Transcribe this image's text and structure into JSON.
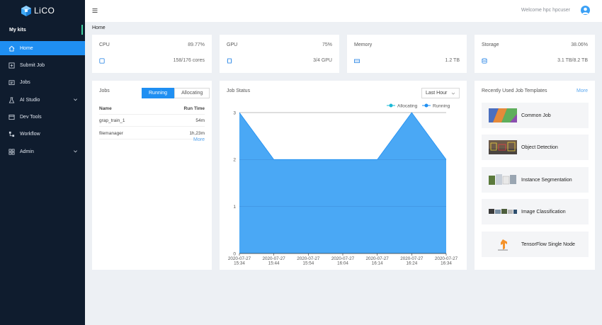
{
  "app": {
    "logo_text": "LiCO"
  },
  "sidebar": {
    "section_label": "My kits",
    "items": [
      {
        "label": "Home",
        "icon": "home-icon",
        "active": true
      },
      {
        "label": "Submit Job",
        "icon": "submit-job-icon"
      },
      {
        "label": "Jobs",
        "icon": "jobs-icon"
      },
      {
        "label": "AI Studio",
        "icon": "ai-studio-icon",
        "expandable": true
      },
      {
        "label": "Dev Tools",
        "icon": "dev-tools-icon"
      },
      {
        "label": "Workflow",
        "icon": "workflow-icon"
      },
      {
        "label": "Admin",
        "icon": "admin-icon",
        "expandable": true
      }
    ]
  },
  "header": {
    "welcome_text": "Welcome hpc hpcuser"
  },
  "breadcrumb": "Home",
  "resources": {
    "cpu": {
      "title": "CPU",
      "percent": "89.77%",
      "value": "158/176 cores",
      "icon": "cpu-icon"
    },
    "gpu": {
      "title": "GPU",
      "percent": "75%",
      "value": "3/4 GPU",
      "icon": "gpu-icon"
    },
    "memory": {
      "title": "Memory",
      "value": "1.2 TB",
      "icon": "memory-icon"
    },
    "storage": {
      "title": "Storage",
      "percent": "38.06%",
      "value": "3.1 TB/8.2 TB",
      "icon": "storage-icon"
    }
  },
  "jobs_panel": {
    "title": "Jobs",
    "tabs": [
      {
        "label": "Running",
        "active": true
      },
      {
        "label": "Allocating"
      }
    ],
    "columns": [
      "Name",
      "Run Time"
    ],
    "rows": [
      {
        "name": "grap_train_1",
        "runtime": "54m"
      },
      {
        "name": "filemanager",
        "runtime": "1h,23m"
      }
    ],
    "more_label": "More"
  },
  "job_status": {
    "title": "Job Status",
    "range_select": "Last Hour",
    "legend": [
      "Allocating",
      "Running"
    ],
    "colors": {
      "allocating": "#1ab8d6",
      "running": "#1f8ff2",
      "area_fill": "#4aa8f5"
    }
  },
  "chart_data": {
    "type": "area",
    "x": [
      "2020-07-27 15:34",
      "2020-07-27 15:44",
      "2020-07-27 15:54",
      "2020-07-27 16:04",
      "2020-07-27 16:14",
      "2020-07-27 16:24",
      "2020-07-27 16:34"
    ],
    "x_tick_lines": [
      [
        "2020-07-27",
        "15:34"
      ],
      [
        "2020-07-27",
        "15:44"
      ],
      [
        "2020-07-27",
        "15:54"
      ],
      [
        "2020-07-27",
        "16:04"
      ],
      [
        "2020-07-27",
        "16:14"
      ],
      [
        "2020-07-27",
        "16:24"
      ],
      [
        "2020-07-27",
        "16:34"
      ]
    ],
    "series": [
      {
        "name": "Allocating",
        "values": [
          3,
          3,
          3,
          3,
          3,
          3,
          3
        ]
      },
      {
        "name": "Running",
        "values": [
          3,
          2,
          2,
          2,
          2,
          3,
          2
        ]
      }
    ],
    "yticks": [
      0,
      1,
      2,
      3
    ],
    "ylim": [
      0,
      3
    ],
    "grid": true,
    "legend_position": "top-right"
  },
  "templates_panel": {
    "title": "Recently Used Job Templates",
    "more_label": "More",
    "items": [
      {
        "label": "Common Job",
        "icon": "common-job-thumbnail"
      },
      {
        "label": "Object Detection",
        "icon": "object-detection-thumbnail"
      },
      {
        "label": "Instance Segmentation",
        "icon": "instance-segmentation-thumbnail"
      },
      {
        "label": "Image Classification",
        "icon": "image-classification-thumbnail"
      },
      {
        "label": "TensorFlow Single Node",
        "icon": "tensorflow-thumbnail"
      }
    ]
  }
}
